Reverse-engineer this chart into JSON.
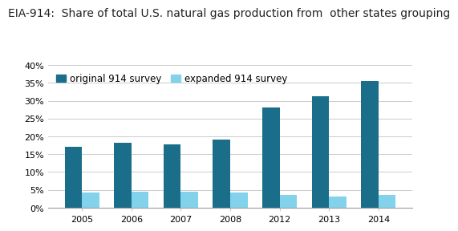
{
  "title": "EIA-914:  Share of total U.S. natural gas production from  other states grouping",
  "categories": [
    "2005",
    "2006",
    "2007",
    "2008",
    "2012",
    "2013",
    "2014"
  ],
  "original_values": [
    17.0,
    18.2,
    17.8,
    19.0,
    28.0,
    31.2,
    35.5
  ],
  "expanded_values": [
    4.3,
    4.5,
    4.4,
    4.3,
    3.7,
    3.2,
    3.6
  ],
  "original_color": "#1a6e8a",
  "expanded_color": "#82d2eb",
  "background_color": "#ffffff",
  "grid_color": "#cccccc",
  "ylim": [
    0,
    40
  ],
  "ytick_values": [
    0,
    5,
    10,
    15,
    20,
    25,
    30,
    35,
    40
  ],
  "legend_original": "original 914 survey",
  "legend_expanded": "expanded 914 survey",
  "title_fontsize": 10,
  "bar_width": 0.35,
  "title_color": "#222222",
  "tick_fontsize": 8,
  "legend_fontsize": 8.5
}
